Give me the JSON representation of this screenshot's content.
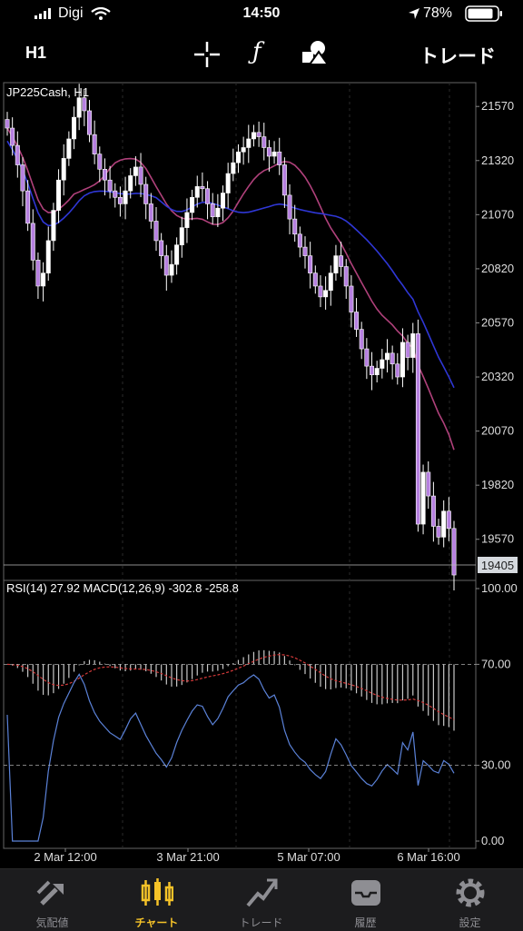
{
  "status_bar": {
    "carrier": "Digi",
    "time": "14:50",
    "battery": "78%"
  },
  "toolbar": {
    "timeframe": "H1",
    "trade_label": "トレード"
  },
  "main_chart": {
    "title": "JP225Cash, H1",
    "price_ticks": [
      "21570",
      "21320",
      "21070",
      "20820",
      "20570",
      "20320",
      "20070",
      "19820",
      "19570"
    ],
    "last_price": "19405"
  },
  "indicator": {
    "label": "RSI(14) 27.92 MACD(12,26,9) -302.8 -258.8",
    "ticks": [
      "100.00",
      "70.00",
      "30.00",
      "0.00"
    ]
  },
  "time_axis": [
    "2 Mar 12:00",
    "3 Mar 21:00",
    "5 Mar 07:00",
    "6 Mar 16:00"
  ],
  "tab_bar": {
    "items": [
      {
        "label": "気配値",
        "icon": "quotes-icon"
      },
      {
        "label": "チャート",
        "icon": "chart-icon"
      },
      {
        "label": "トレード",
        "icon": "trade-icon"
      },
      {
        "label": "履歴",
        "icon": "history-icon"
      },
      {
        "label": "設定",
        "icon": "settings-icon"
      }
    ],
    "active": "チャート"
  },
  "colors": {
    "bull": "#ffffff",
    "bear": "#b680e0",
    "ma_blue": "#2f37d6",
    "ma_purple": "#b0417b",
    "rsi": "#5b82d8",
    "macd_signal": "#d43a3a",
    "accent": "#f5c228"
  },
  "chart_data": {
    "type": "candlestick",
    "symbol": "JP225Cash",
    "timeframe": "H1",
    "y_range": [
      19380,
      21680
    ],
    "last": 19405,
    "closes": [
      21470,
      21390,
      21300,
      21180,
      21030,
      20860,
      20740,
      20800,
      20950,
      21090,
      21230,
      21330,
      21420,
      21520,
      21610,
      21550,
      21440,
      21350,
      21280,
      21230,
      21180,
      21150,
      21120,
      21180,
      21250,
      21290,
      21210,
      21120,
      21040,
      20950,
      20880,
      20790,
      20840,
      20930,
      21010,
      21080,
      21150,
      21200,
      21190,
      21120,
      21060,
      21100,
      21170,
      21260,
      21310,
      21360,
      21380,
      21420,
      21450,
      21430,
      21380,
      21340,
      21360,
      21300,
      21160,
      21050,
      20980,
      20920,
      20880,
      20800,
      20740,
      20690,
      20720,
      20800,
      20880,
      20830,
      20740,
      20620,
      20540,
      20450,
      20370,
      20330,
      20360,
      20400,
      20430,
      20380,
      20320,
      20480,
      20410,
      20520,
      19640,
      19880,
      19770,
      19630,
      19580,
      19700,
      19620,
      19405
    ],
    "rsi": {
      "last": 27.92,
      "ticks": [
        0,
        30,
        70,
        100
      ]
    },
    "macd": {
      "fast": 12,
      "slow": 26,
      "signal": 9,
      "main": -302.8,
      "signal_value": -258.8
    }
  }
}
